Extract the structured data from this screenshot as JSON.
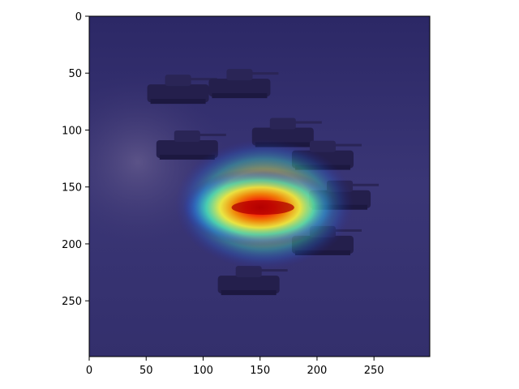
{
  "chart_data": {
    "type": "heatmap",
    "title": "",
    "xlabel": "",
    "ylabel": "",
    "xlim": [
      0,
      299
    ],
    "ylim": [
      299,
      0
    ],
    "x_ticks": [
      0,
      50,
      100,
      150,
      200,
      250
    ],
    "y_ticks": [
      0,
      50,
      100,
      150,
      200,
      250
    ],
    "x_tick_labels": [
      "0",
      "50",
      "100",
      "150",
      "200",
      "250"
    ],
    "y_tick_labels": [
      "0",
      "50",
      "100",
      "150",
      "200",
      "250"
    ],
    "background": {
      "description_colors": [
        "#3c3470",
        "#2a2560",
        "#4a4680"
      ]
    },
    "hotspot": {
      "center": [
        150,
        168
      ],
      "peak_region": {
        "x_from": 125,
        "x_to": 180,
        "y": 168
      },
      "colormap": "jet",
      "overlay_alpha": 0.5
    },
    "tanks": [
      {
        "x": 78,
        "y": 67
      },
      {
        "x": 132,
        "y": 62
      },
      {
        "x": 86,
        "y": 116
      },
      {
        "x": 170,
        "y": 105
      },
      {
        "x": 205,
        "y": 125
      },
      {
        "x": 220,
        "y": 160
      },
      {
        "x": 205,
        "y": 200
      },
      {
        "x": 140,
        "y": 235
      }
    ]
  }
}
